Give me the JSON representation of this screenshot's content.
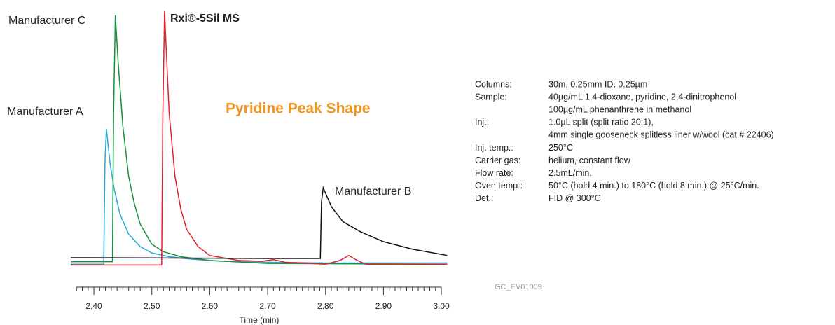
{
  "chart_data": {
    "type": "line",
    "title": "Pyridine Peak Shape",
    "title_color": "#f29422",
    "xlabel": "Time (min)",
    "xlim": [
      2.36,
      3.02
    ],
    "ylim": [
      -3,
      102
    ],
    "xticks": [
      {
        "value": 2.4,
        "label": "2.40"
      },
      {
        "value": 2.5,
        "label": "2.50"
      },
      {
        "value": 2.6,
        "label": "2.60"
      },
      {
        "value": 2.7,
        "label": "2.70"
      },
      {
        "value": 2.8,
        "label": "2.80"
      },
      {
        "value": 2.9,
        "label": "2.90"
      },
      {
        "value": 3.0,
        "label": "3.00"
      }
    ],
    "xminorticks": [
      2.37,
      2.38,
      2.39,
      2.41,
      2.42,
      2.43,
      2.44,
      2.45,
      2.46,
      2.47,
      2.48,
      2.49,
      2.51,
      2.52,
      2.53,
      2.54,
      2.55,
      2.56,
      2.57,
      2.58,
      2.59,
      2.61,
      2.62,
      2.63,
      2.64,
      2.65,
      2.66,
      2.67,
      2.68,
      2.69,
      2.71,
      2.72,
      2.73,
      2.74,
      2.75,
      2.76,
      2.77,
      2.78,
      2.79,
      2.81,
      2.82,
      2.83,
      2.84,
      2.85,
      2.86,
      2.87,
      2.88,
      2.89,
      2.91,
      2.92,
      2.93,
      2.94,
      2.95,
      2.96,
      2.97,
      2.98,
      2.99
    ],
    "series": [
      {
        "name": "Manufacturer A",
        "color": "#29a8d8",
        "x": [
          2.36,
          2.417,
          2.419,
          2.4215,
          2.428,
          2.435,
          2.445,
          2.46,
          2.48,
          2.5,
          2.53,
          2.57,
          2.62,
          2.7,
          2.8,
          2.9,
          3.01
        ],
        "values": [
          0,
          0,
          40,
          54,
          40,
          30,
          20,
          12,
          7,
          4.5,
          3,
          2,
          1.2,
          0.8,
          0.5,
          0.5,
          0.5
        ]
      },
      {
        "name": "Manufacturer C",
        "color": "#17913f",
        "x": [
          2.36,
          2.432,
          2.434,
          2.437,
          2.442,
          2.45,
          2.46,
          2.47,
          2.48,
          2.5,
          2.52,
          2.55,
          2.6,
          2.7,
          3.01
        ],
        "values": [
          1,
          1,
          60,
          99.3,
          80,
          55,
          35,
          24,
          16,
          8,
          5,
          3,
          1.5,
          0.3,
          0
        ]
      },
      {
        "name": "Rxi®-5Sil MS",
        "color": "#e3202a",
        "x": [
          2.36,
          2.517,
          2.519,
          2.522,
          2.525,
          2.53,
          2.54,
          2.55,
          2.56,
          2.58,
          2.6,
          2.65,
          2.69,
          2.71,
          2.73,
          2.8,
          2.825,
          2.84,
          2.855,
          2.87,
          3.01
        ],
        "values": [
          -0.3,
          -0.3,
          60,
          101,
          85,
          60,
          35,
          22,
          14,
          7,
          3.5,
          1.5,
          1.2,
          1.8,
          0.8,
          0,
          1.5,
          3.5,
          1.5,
          0,
          0
        ]
      },
      {
        "name": "Manufacturer B",
        "color": "#111111",
        "x": [
          2.36,
          2.5,
          2.6,
          2.7,
          2.791,
          2.793,
          2.796,
          2.81,
          2.83,
          2.86,
          2.9,
          2.95,
          3.01
        ],
        "values": [
          2.6,
          2.5,
          2.4,
          2.3,
          2.3,
          25,
          30.5,
          23,
          17,
          13,
          9,
          6,
          3.5
        ]
      }
    ],
    "conditions": [
      {
        "label": "Columns:",
        "lines": [
          "30m, 0.25mm ID, 0.25µm"
        ]
      },
      {
        "label": "Sample:",
        "lines": [
          "40µg/mL 1,4-dioxane, pyridine, 2,4-dinitrophenol",
          "100µg/mL phenanthrene in methanol"
        ]
      },
      {
        "label": "Inj.:",
        "lines": [
          "1.0µL split (split ratio 20:1),",
          "4mm single gooseneck splitless liner w/wool (cat.# 22406)"
        ]
      },
      {
        "label": "Inj. temp.:",
        "lines": [
          "250°C"
        ]
      },
      {
        "label": "Carrier gas:",
        "lines": [
          "helium, constant flow"
        ]
      },
      {
        "label": "Flow rate:",
        "lines": [
          "2.5mL/min."
        ]
      },
      {
        "label": "Oven temp.:",
        "lines": [
          "50°C (hold 4 min.) to 180°C (hold 8 min.) @ 25°C/min."
        ]
      },
      {
        "label": "Det.:",
        "lines": [
          "FID @ 300°C"
        ]
      }
    ],
    "code": "GC_EV01009"
  }
}
